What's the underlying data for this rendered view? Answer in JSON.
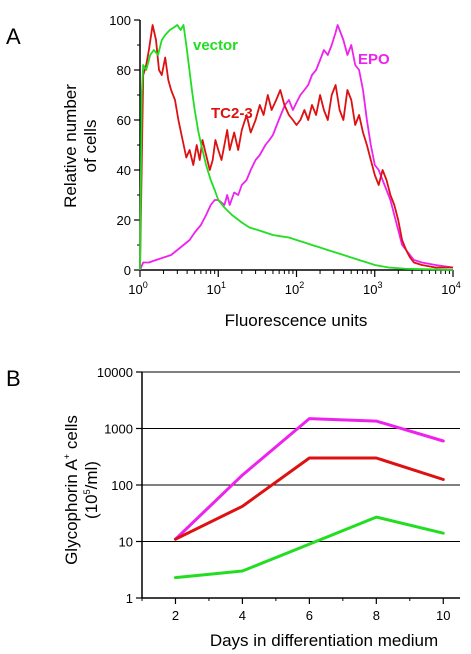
{
  "chart_data": [
    {
      "panel": "A",
      "type": "line",
      "xlabel": "Fluorescence units",
      "ylabel_lines": [
        "Relative number",
        "of cells"
      ],
      "x_scale": "log",
      "xlim": [
        1,
        10000
      ],
      "ylim": [
        0,
        100
      ],
      "x_ticks": [
        {
          "value": 1,
          "base": "10",
          "exp": "0"
        },
        {
          "value": 10,
          "base": "10",
          "exp": "1"
        },
        {
          "value": 100,
          "base": "10",
          "exp": "2"
        },
        {
          "value": 1000,
          "base": "10",
          "exp": "3"
        },
        {
          "value": 10000,
          "base": "10",
          "exp": "4"
        }
      ],
      "y_ticks": [
        0,
        20,
        40,
        60,
        80,
        100
      ],
      "grid": false,
      "series": [
        {
          "name": "vector",
          "color": "#22dd22",
          "points": [
            [
              1.0,
              0
            ],
            [
              1.05,
              70
            ],
            [
              1.1,
              82
            ],
            [
              1.2,
              80
            ],
            [
              1.35,
              86
            ],
            [
              1.5,
              88
            ],
            [
              1.7,
              86
            ],
            [
              1.9,
              92
            ],
            [
              2.1,
              94
            ],
            [
              2.4,
              96
            ],
            [
              2.7,
              97
            ],
            [
              3.0,
              98
            ],
            [
              3.3,
              96
            ],
            [
              3.6,
              98
            ],
            [
              3.9,
              90
            ],
            [
              4.2,
              82
            ],
            [
              4.6,
              72
            ],
            [
              5.0,
              64
            ],
            [
              5.6,
              55
            ],
            [
              6.3,
              48
            ],
            [
              7.0,
              42
            ],
            [
              8.0,
              36
            ],
            [
              9.0,
              32
            ],
            [
              10,
              28
            ],
            [
              12,
              25
            ],
            [
              15,
              22
            ],
            [
              20,
              19
            ],
            [
              25,
              17
            ],
            [
              32,
              16
            ],
            [
              40,
              15
            ],
            [
              50,
              14
            ],
            [
              63,
              13.5
            ],
            [
              80,
              13
            ],
            [
              100,
              12
            ],
            [
              126,
              11
            ],
            [
              158,
              10
            ],
            [
              200,
              9
            ],
            [
              250,
              8
            ],
            [
              316,
              7
            ],
            [
              400,
              6
            ],
            [
              500,
              5
            ],
            [
              630,
              4
            ],
            [
              800,
              3
            ],
            [
              1000,
              2
            ],
            [
              1500,
              1
            ],
            [
              2500,
              0.5
            ],
            [
              5000,
              0.3
            ],
            [
              10000,
              0
            ]
          ]
        },
        {
          "name": "TC2-3",
          "color": "#dd1111",
          "points": [
            [
              1.0,
              0
            ],
            [
              1.1,
              78
            ],
            [
              1.2,
              82
            ],
            [
              1.3,
              88
            ],
            [
              1.45,
              98
            ],
            [
              1.6,
              92
            ],
            [
              1.75,
              80
            ],
            [
              1.9,
              78
            ],
            [
              2.1,
              85
            ],
            [
              2.3,
              76
            ],
            [
              2.5,
              72
            ],
            [
              2.8,
              68
            ],
            [
              3.1,
              60
            ],
            [
              3.5,
              52
            ],
            [
              3.9,
              45
            ],
            [
              4.3,
              48
            ],
            [
              4.8,
              42
            ],
            [
              5.3,
              50
            ],
            [
              5.8,
              44
            ],
            [
              6.3,
              52
            ],
            [
              7.0,
              46
            ],
            [
              7.8,
              40
            ],
            [
              8.5,
              44
            ],
            [
              9.2,
              52
            ],
            [
              10,
              48
            ],
            [
              11,
              44
            ],
            [
              12,
              50
            ],
            [
              13,
              56
            ],
            [
              14,
              48
            ],
            [
              16,
              55
            ],
            [
              18,
              48
            ],
            [
              20,
              56
            ],
            [
              23,
              62
            ],
            [
              26,
              55
            ],
            [
              30,
              60
            ],
            [
              34,
              66
            ],
            [
              38,
              62
            ],
            [
              43,
              70
            ],
            [
              48,
              64
            ],
            [
              55,
              68
            ],
            [
              62,
              72
            ],
            [
              70,
              66
            ],
            [
              80,
              62
            ],
            [
              90,
              60
            ],
            [
              100,
              58
            ],
            [
              112,
              60
            ],
            [
              126,
              64
            ],
            [
              141,
              60
            ],
            [
              158,
              66
            ],
            [
              178,
              62
            ],
            [
              200,
              70
            ],
            [
              224,
              64
            ],
            [
              251,
              60
            ],
            [
              282,
              70
            ],
            [
              316,
              74
            ],
            [
              355,
              64
            ],
            [
              398,
              60
            ],
            [
              447,
              72
            ],
            [
              501,
              68
            ],
            [
              562,
              58
            ],
            [
              631,
              62
            ],
            [
              708,
              55
            ],
            [
              794,
              50
            ],
            [
              891,
              44
            ],
            [
              1000,
              38
            ],
            [
              1122,
              34
            ],
            [
              1259,
              40
            ],
            [
              1413,
              36
            ],
            [
              1585,
              30
            ],
            [
              1778,
              26
            ],
            [
              1995,
              20
            ],
            [
              2239,
              12
            ],
            [
              2512,
              8
            ],
            [
              2818,
              5
            ],
            [
              3162,
              3
            ],
            [
              4000,
              2
            ],
            [
              6000,
              1
            ],
            [
              10000,
              1
            ]
          ]
        },
        {
          "name": "EPO",
          "color": "#ee22ee",
          "points": [
            [
              1.0,
              0
            ],
            [
              1.1,
              3
            ],
            [
              1.3,
              3
            ],
            [
              1.6,
              4
            ],
            [
              2.0,
              5
            ],
            [
              2.5,
              6
            ],
            [
              3.0,
              8
            ],
            [
              3.6,
              10
            ],
            [
              4.3,
              12
            ],
            [
              5.0,
              15
            ],
            [
              6.0,
              18
            ],
            [
              7.0,
              22
            ],
            [
              8.0,
              26
            ],
            [
              9.0,
              28
            ],
            [
              10,
              28
            ],
            [
              11,
              27
            ],
            [
              12,
              26
            ],
            [
              13,
              30
            ],
            [
              14,
              26
            ],
            [
              16,
              31
            ],
            [
              18,
              30
            ],
            [
              20,
              34
            ],
            [
              23,
              36
            ],
            [
              26,
              40
            ],
            [
              30,
              44
            ],
            [
              34,
              46
            ],
            [
              40,
              50
            ],
            [
              45,
              52
            ],
            [
              50,
              54
            ],
            [
              56,
              58
            ],
            [
              63,
              62
            ],
            [
              71,
              66
            ],
            [
              80,
              68
            ],
            [
              90,
              64
            ],
            [
              100,
              67
            ],
            [
              112,
              70
            ],
            [
              126,
              72
            ],
            [
              141,
              74
            ],
            [
              158,
              78
            ],
            [
              178,
              80
            ],
            [
              200,
              84
            ],
            [
              224,
              88
            ],
            [
              251,
              86
            ],
            [
              282,
              90
            ],
            [
              316,
              95
            ],
            [
              335,
              98
            ],
            [
              355,
              96
            ],
            [
              398,
              92
            ],
            [
              447,
              86
            ],
            [
              501,
              90
            ],
            [
              562,
              82
            ],
            [
              631,
              80
            ],
            [
              708,
              72
            ],
            [
              794,
              60
            ],
            [
              891,
              50
            ],
            [
              1000,
              42
            ],
            [
              1122,
              40
            ],
            [
              1259,
              36
            ],
            [
              1413,
              32
            ],
            [
              1585,
              28
            ],
            [
              1778,
              22
            ],
            [
              1995,
              16
            ],
            [
              2239,
              10
            ],
            [
              2512,
              8
            ],
            [
              2818,
              6
            ],
            [
              3162,
              4
            ],
            [
              4000,
              3
            ],
            [
              6000,
              2
            ],
            [
              10000,
              1
            ]
          ]
        }
      ],
      "labels": [
        {
          "text": "vector",
          "series": "vector"
        },
        {
          "text": "TC2-3",
          "series": "TC2-3"
        },
        {
          "text": "EPO",
          "series": "EPO"
        }
      ]
    },
    {
      "panel": "B",
      "type": "line",
      "xlabel": "Days in differentiation medium",
      "ylabel": "Glycophorin A",
      "ylabel_sup": "+",
      "ylabel_suffix": " cells",
      "yunit_base": "(10",
      "yunit_sup": "5",
      "yunit_suffix": "/ml)",
      "y_scale": "log",
      "xlim": [
        1,
        10.5
      ],
      "ylim": [
        1,
        10000
      ],
      "x_ticks": [
        2,
        4,
        6,
        8,
        10
      ],
      "y_ticks": [
        1,
        10,
        100,
        1000,
        10000
      ],
      "y_tick_labels": [
        "1",
        "10",
        "100",
        "1000",
        "10000"
      ],
      "grid": "horizontal",
      "x": [
        2,
        4,
        6,
        8,
        10
      ],
      "series": [
        {
          "color": "#ee22ee",
          "values": [
            11,
            150,
            1500,
            1350,
            600
          ]
        },
        {
          "color": "#dd1111",
          "values": [
            11,
            42,
            300,
            300,
            125
          ]
        },
        {
          "color": "#22dd22",
          "values": [
            2.3,
            3,
            9,
            27,
            14
          ]
        }
      ]
    }
  ],
  "panel_letters": [
    "A",
    "B"
  ]
}
